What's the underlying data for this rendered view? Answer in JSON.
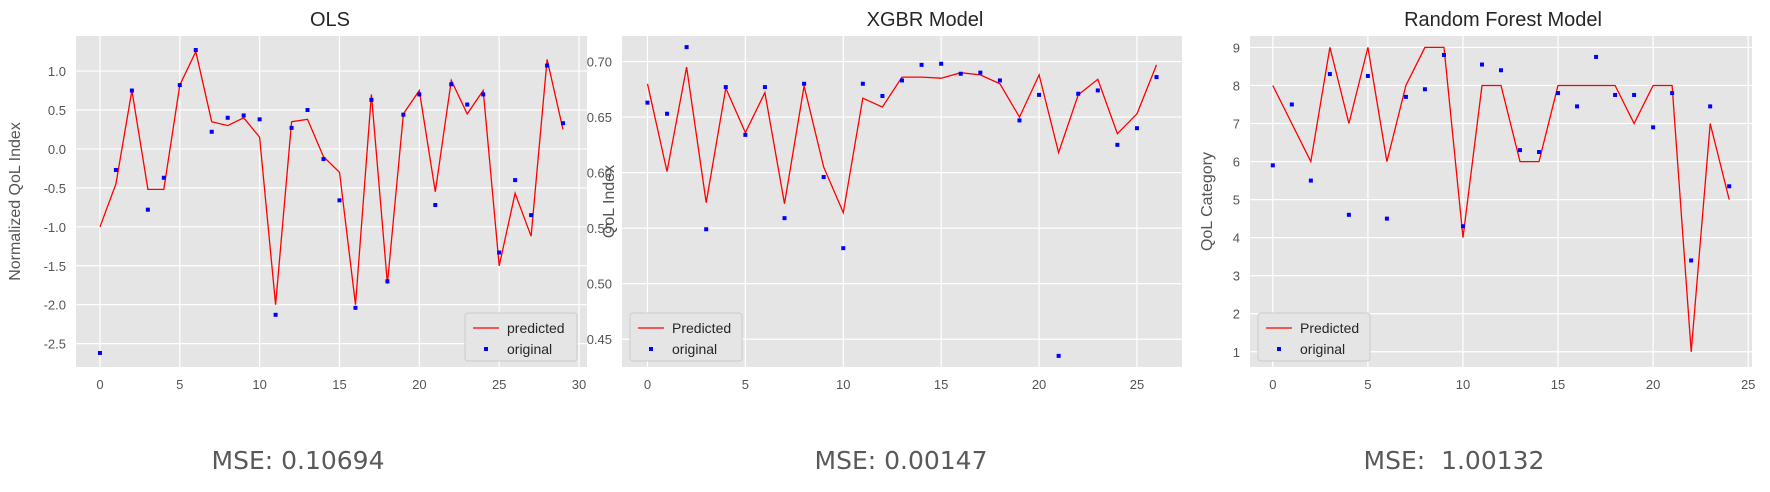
{
  "chart_data": [
    {
      "type": "line",
      "title": "OLS",
      "xlabel": "",
      "ylabel": "Normalized QoL Index",
      "xlim": [
        -1.5,
        30.5
      ],
      "ylim": [
        -2.8,
        1.45
      ],
      "xticks": [
        0,
        5,
        10,
        15,
        20,
        25,
        30
      ],
      "yticks": [
        -2.5,
        -2.0,
        -1.5,
        -1.0,
        -0.5,
        0.0,
        0.5,
        1.0
      ],
      "ytick_decimals": 1,
      "grid": true,
      "legend_placement": "lower-right",
      "series": [
        {
          "name": "predicted",
          "style": "line",
          "color": "#ff0000",
          "x": [
            0,
            1,
            2,
            3,
            4,
            5,
            6,
            7,
            8,
            9,
            10,
            11,
            12,
            13,
            14,
            15,
            16,
            17,
            18,
            19,
            20,
            21,
            22,
            23,
            24,
            25,
            26,
            27,
            28,
            29
          ],
          "values": [
            -1.0,
            -0.45,
            0.75,
            -0.52,
            -0.52,
            0.82,
            1.25,
            0.35,
            0.3,
            0.4,
            0.15,
            -2.0,
            0.35,
            0.38,
            -0.1,
            -0.3,
            -2.0,
            0.7,
            -1.73,
            0.45,
            0.75,
            -0.55,
            0.88,
            0.45,
            0.75,
            -1.5,
            -0.57,
            -1.12,
            1.15,
            0.25
          ]
        },
        {
          "name": "original",
          "style": "points",
          "color": "#0000ff",
          "x": [
            0,
            1,
            2,
            3,
            4,
            5,
            6,
            7,
            8,
            9,
            10,
            11,
            12,
            13,
            14,
            15,
            16,
            17,
            18,
            19,
            20,
            21,
            22,
            23,
            24,
            25,
            26,
            27,
            28,
            29
          ],
          "values": [
            -2.62,
            -0.27,
            0.75,
            -0.78,
            -0.37,
            0.82,
            1.27,
            0.22,
            0.4,
            0.43,
            0.38,
            -2.13,
            0.27,
            0.5,
            -0.13,
            -0.66,
            -2.04,
            0.63,
            -1.7,
            0.44,
            0.7,
            -0.72,
            0.83,
            0.57,
            0.7,
            -1.33,
            -0.4,
            -0.85,
            1.07,
            0.33
          ]
        }
      ]
    },
    {
      "type": "line",
      "title": "XGBR Model",
      "xlabel": "",
      "ylabel": "QoL Index",
      "xlim": [
        -1.3,
        27.3
      ],
      "ylim": [
        0.425,
        0.723
      ],
      "xticks": [
        0,
        5,
        10,
        15,
        20,
        25
      ],
      "yticks": [
        0.45,
        0.5,
        0.55,
        0.6,
        0.65,
        0.7
      ],
      "ytick_decimals": 2,
      "grid": true,
      "legend_placement": "lower-left",
      "series": [
        {
          "name": "Predicted",
          "style": "line",
          "color": "#ff0000",
          "x": [
            0,
            1,
            2,
            3,
            4,
            5,
            6,
            7,
            8,
            9,
            10,
            11,
            12,
            13,
            14,
            15,
            16,
            17,
            18,
            19,
            20,
            21,
            22,
            23,
            24,
            25,
            26
          ],
          "values": [
            0.68,
            0.601,
            0.695,
            0.573,
            0.676,
            0.636,
            0.672,
            0.572,
            0.678,
            0.605,
            0.564,
            0.667,
            0.659,
            0.686,
            0.686,
            0.685,
            0.69,
            0.688,
            0.68,
            0.65,
            0.688,
            0.618,
            0.67,
            0.684,
            0.635,
            0.653,
            0.697
          ]
        },
        {
          "name": "original",
          "style": "points",
          "color": "#0000ff",
          "x": [
            0,
            1,
            2,
            3,
            4,
            5,
            6,
            7,
            8,
            9,
            10,
            11,
            12,
            13,
            14,
            15,
            16,
            17,
            18,
            19,
            20,
            21,
            22,
            23,
            24,
            25,
            26
          ],
          "values": [
            0.663,
            0.653,
            0.713,
            0.549,
            0.677,
            0.634,
            0.677,
            0.559,
            0.68,
            0.596,
            0.532,
            0.68,
            0.669,
            0.683,
            0.697,
            0.698,
            0.689,
            0.69,
            0.683,
            0.647,
            0.67,
            0.435,
            0.671,
            0.674,
            0.625,
            0.64,
            0.686
          ]
        }
      ]
    },
    {
      "type": "line",
      "title": "Random Forest Model",
      "xlabel": "",
      "ylabel": "QoL Category",
      "xlim": [
        -1.2,
        25.2
      ],
      "ylim": [
        0.6,
        9.3
      ],
      "xticks": [
        0,
        5,
        10,
        15,
        20,
        25
      ],
      "yticks": [
        1,
        2,
        3,
        4,
        5,
        6,
        7,
        8,
        9
      ],
      "ytick_decimals": 0,
      "grid": true,
      "legend_placement": "lower-left",
      "series": [
        {
          "name": "Predicted",
          "style": "line",
          "color": "#ff0000",
          "x": [
            0,
            1,
            2,
            3,
            4,
            5,
            6,
            7,
            8,
            9,
            10,
            11,
            12,
            13,
            14,
            15,
            16,
            17,
            18,
            19,
            20,
            21,
            22,
            23,
            24
          ],
          "values": [
            8,
            7,
            6,
            9,
            7,
            9,
            6,
            8,
            9,
            9,
            4,
            8,
            8,
            6,
            6,
            8,
            8,
            8,
            8,
            7,
            8,
            8,
            1,
            7,
            5
          ]
        },
        {
          "name": "original",
          "style": "points",
          "color": "#0000ff",
          "x": [
            0,
            1,
            2,
            3,
            4,
            5,
            6,
            7,
            8,
            9,
            10,
            11,
            12,
            13,
            14,
            15,
            16,
            17,
            18,
            19,
            20,
            21,
            22,
            23,
            24
          ],
          "values": [
            5.9,
            7.5,
            5.5,
            8.3,
            4.6,
            8.25,
            4.5,
            7.7,
            7.9,
            8.8,
            4.3,
            8.55,
            8.4,
            6.3,
            6.25,
            7.8,
            7.45,
            8.75,
            7.75,
            7.75,
            6.9,
            7.8,
            3.4,
            7.45,
            5.35
          ]
        }
      ]
    }
  ],
  "mse": [
    {
      "label": "MSE: 0.10694"
    },
    {
      "label": "MSE: 0.00147"
    },
    {
      "label": "MSE:  1.00132"
    }
  ]
}
